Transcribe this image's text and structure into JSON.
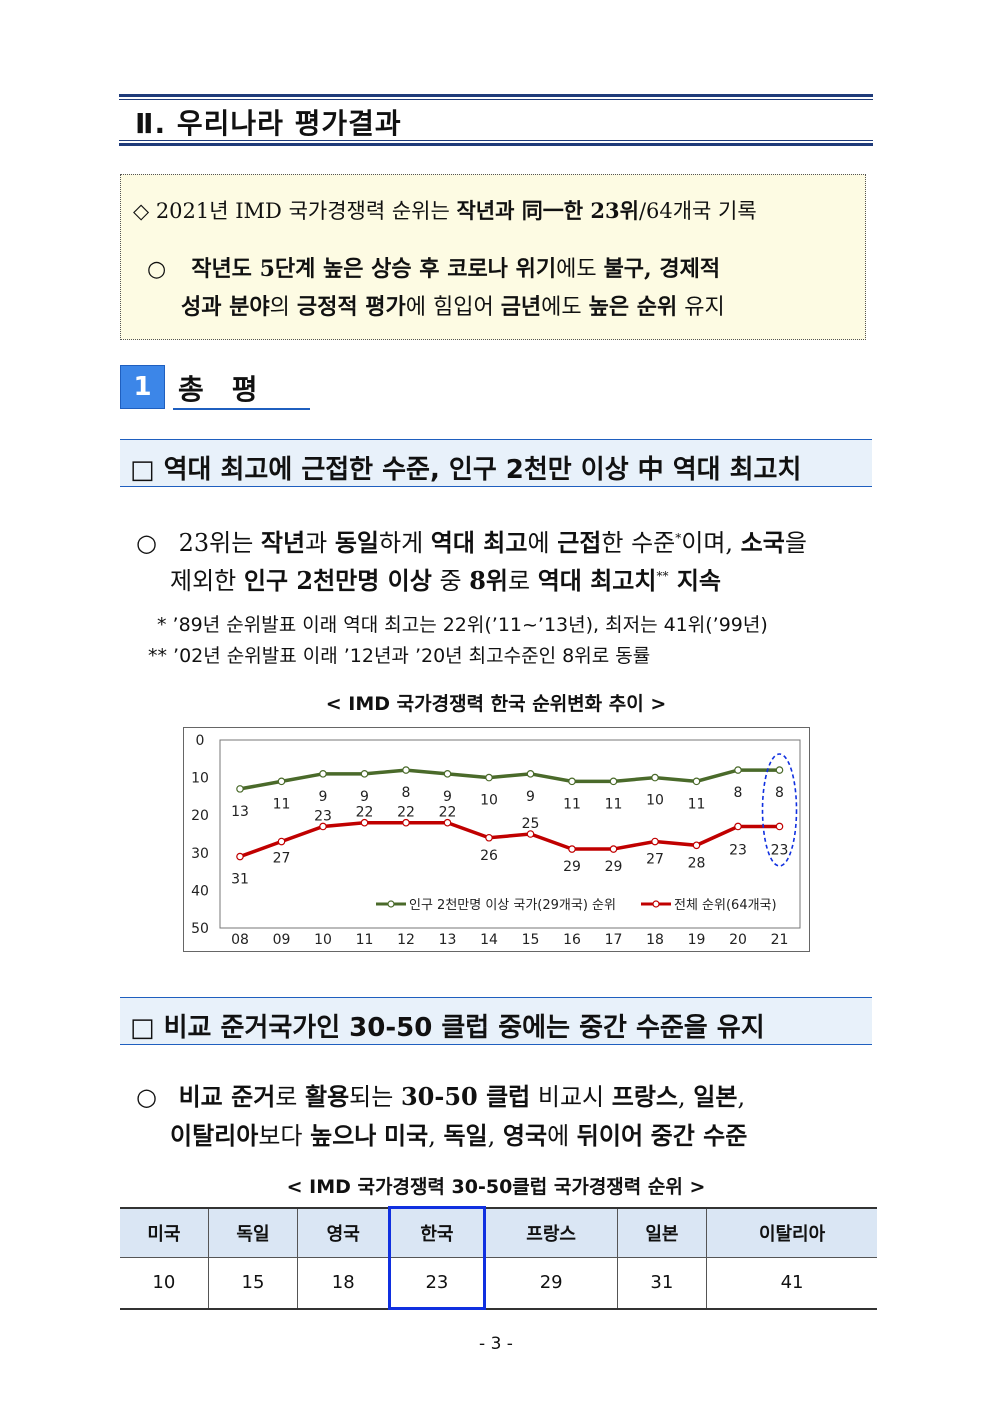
{
  "section": {
    "title": "Ⅱ. 우리나라 평가결과"
  },
  "summary": {
    "line1": {
      "a": "◇ 2021년 IMD 국가경쟁력 순위는 ",
      "b": "작년과 同一한 23위",
      "c": "/64개국 기록"
    },
    "line2": {
      "bullet": "○",
      "a": "작년도 5단계 높은 상승 후 코로나 위기",
      "b": "에도 ",
      "c": "불구, 경제적"
    },
    "line3": {
      "a": "성과 분야",
      "b": "의 ",
      "c": "긍정적 평가",
      "d": "에 힘입어 ",
      "e": "금년",
      "f": "에도 ",
      "g": "높은 순위",
      "h": " 유지"
    }
  },
  "subsection": {
    "number": "1",
    "title": "총평"
  },
  "headline1": "□ 역대 최고에 근접한 수준, 인구 2천만 이상 中 역대 최고치",
  "para1": {
    "line1": {
      "bullet": "○",
      "a": "23위는 ",
      "b": "작년",
      "c": "과 ",
      "d": "동일",
      "e": "하게 ",
      "f": "역대 최고",
      "g": "에 ",
      "h": "근접",
      "i": "한 수준",
      "sup": "*",
      "j": "이며, ",
      "k": "소국",
      "l": "을"
    },
    "line2": {
      "a": "제외한 ",
      "b": "인구 2천만명 이상",
      "c": " 중 ",
      "d": "8위",
      "e": "로 ",
      "f": "역대 최고치",
      "sup": "**",
      "g": " 지속"
    }
  },
  "notes": {
    "n1": "* ’89년 순위발표 이래 역대 최고는 22위(’11~’13년), 최저는 41위(’99년)",
    "n2": "** ’02년 순위발표 이래 ’12년과 ’20년 최고수준인 8위로 동률"
  },
  "chart_caption": "< IMD 국가경쟁력 한국 순위변화 추이 >",
  "chart_data": {
    "type": "line",
    "categories": [
      "08",
      "09",
      "10",
      "11",
      "12",
      "13",
      "14",
      "15",
      "16",
      "17",
      "18",
      "19",
      "20",
      "21"
    ],
    "series": [
      {
        "name": "인구 2천만명 이상 국가(29개국) 순위",
        "color": "#4a6a2a",
        "values": [
          13,
          11,
          9,
          9,
          8,
          9,
          10,
          9,
          11,
          11,
          10,
          11,
          8,
          8
        ]
      },
      {
        "name": "전체 순위(64개국)",
        "color": "#c00000",
        "values": [
          31,
          27,
          23,
          22,
          22,
          22,
          26,
          25,
          29,
          29,
          27,
          28,
          23,
          23
        ]
      }
    ],
    "y_ticks": [
      "0",
      "10",
      "20",
      "30",
      "40",
      "50"
    ],
    "ylim": [
      0,
      50
    ],
    "y_inverted": true,
    "legend_position": "bottom-right",
    "highlight_category": "21",
    "highlight_color": "#1030e0"
  },
  "headline2": "□ 비교 준거국가인 30-50 클럽 중에는 중간 수준을 유지",
  "para2": {
    "line1": {
      "bullet": "○",
      "a": "비교 준거",
      "b": "로 ",
      "c": "활용",
      "d": "되는 ",
      "e": "30-50 클럽",
      "f": " 비교시 ",
      "g": "프랑스",
      "h": ", ",
      "i": "일본",
      "j": ","
    },
    "line2": {
      "a": "이탈리아",
      "b": "보다 ",
      "c": "높으나",
      "d": " ",
      "e": "미국",
      "f": ", ",
      "g": "독일",
      "h": ", ",
      "i": "영국",
      "j": "에 ",
      "k": "뒤이어",
      "l": " ",
      "m": "중간 수준"
    }
  },
  "table_caption": "< IMD 국가경쟁력 30-50클럽 국가경쟁력 순위 >",
  "table": {
    "headers": [
      "미국",
      "독일",
      "영국",
      "한국",
      "프랑스",
      "일본",
      "이탈리아"
    ],
    "values": [
      "10",
      "15",
      "18",
      "23",
      "29",
      "31",
      "41"
    ],
    "highlight_index": 3
  },
  "page_number": "- 3 -"
}
